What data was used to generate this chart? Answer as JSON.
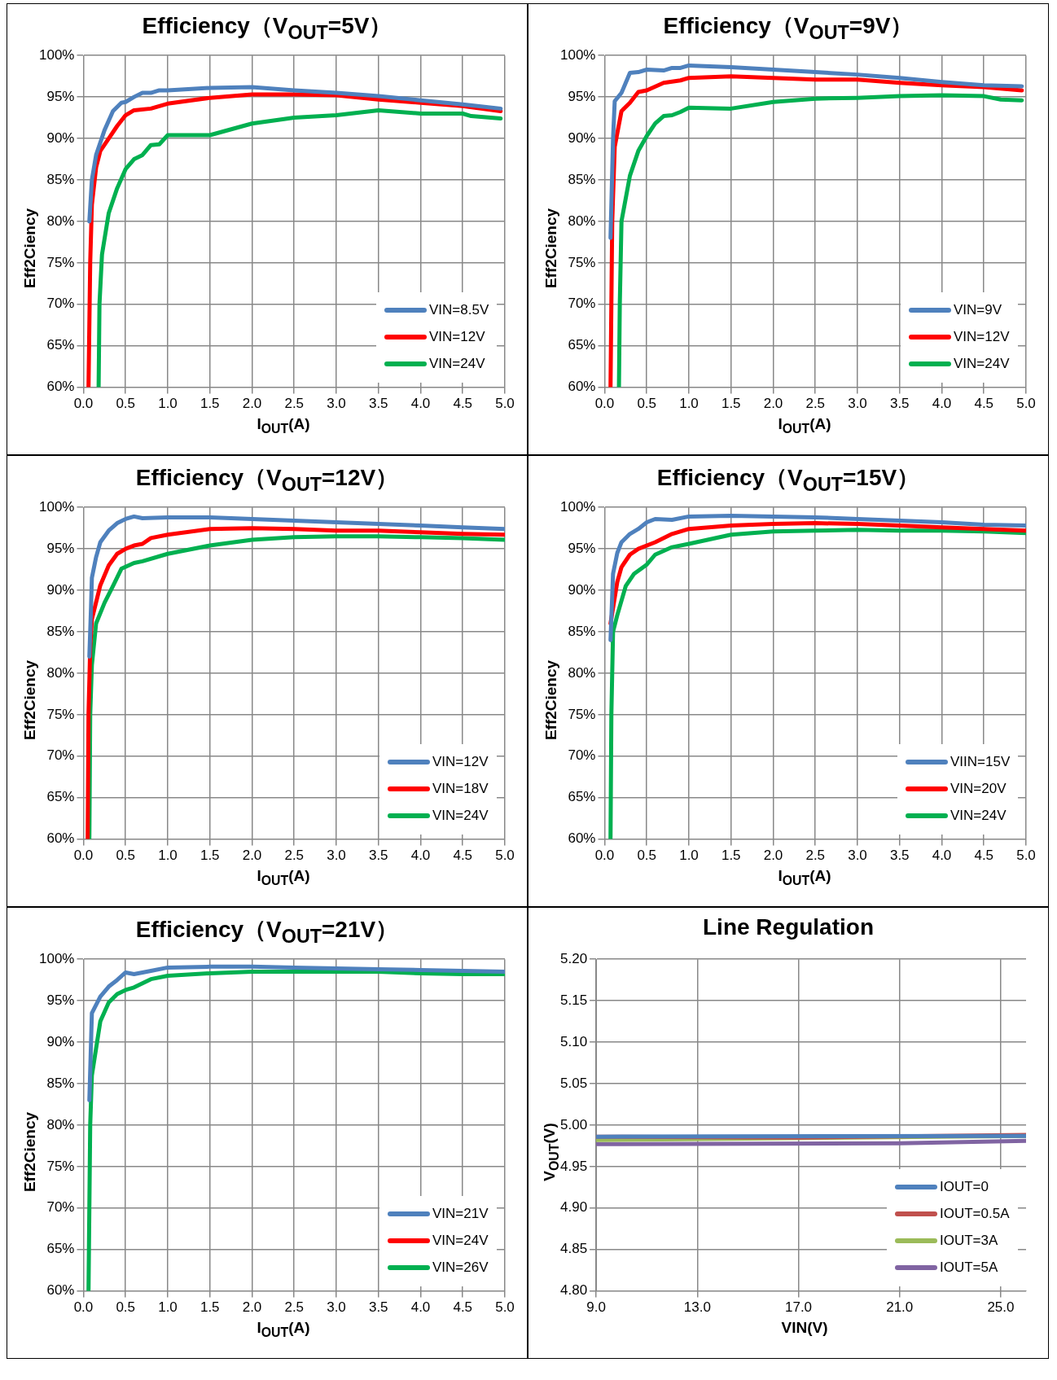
{
  "chart_data": [
    {
      "type": "line",
      "title": "Efficiency（V$_{OUT}$=5V）",
      "xlabel": "I$_{OUT}$(A)",
      "ylabel": "Eff2Ciency",
      "xlim": [
        0,
        5
      ],
      "xticks": [
        {
          "value": 0,
          "label": "0.0"
        },
        0.5,
        {
          "value": 1,
          "label": "1.0"
        },
        1.5,
        {
          "value": 2,
          "label": "2.0"
        },
        2.5,
        {
          "value": 3,
          "label": "3.0"
        },
        3.5,
        {
          "value": 4,
          "label": "4.0"
        },
        4.5,
        {
          "value": 5,
          "label": "5.0"
        }
      ],
      "ylim": [
        60,
        100
      ],
      "yticks": [
        {
          "value": 60,
          "label": "60%"
        },
        {
          "value": 65,
          "label": "65%"
        },
        {
          "value": 70,
          "label": "70%"
        },
        {
          "value": 75,
          "label": "75%"
        },
        {
          "value": 80,
          "label": "80%"
        },
        {
          "value": 85,
          "label": "85%"
        },
        {
          "value": 90,
          "label": "90%"
        },
        {
          "value": 95,
          "label": "95%"
        },
        {
          "value": 100,
          "label": "100%"
        }
      ],
      "grid": true,
      "legend": "bottom right",
      "marker": "none",
      "line_style": "solid",
      "series": [
        {
          "name": "VIN=8.5V",
          "color": "#4f81bd",
          "x": [
            0.07,
            0.1,
            0.15,
            0.25,
            0.35,
            0.45,
            0.5,
            0.6,
            0.7,
            0.8,
            0.9,
            1.0,
            1.5,
            2.0,
            2.5,
            3.0,
            3.5,
            4.0,
            4.5,
            4.95
          ],
          "values": [
            80,
            85,
            88,
            91,
            93.3,
            94.3,
            94.4,
            95,
            95.5,
            95.5,
            95.8,
            95.8,
            96.1,
            96.2,
            95.8,
            95.5,
            95.1,
            94.6,
            94.1,
            93.6
          ]
        },
        {
          "name": "VIN=12V",
          "color": "#ff0000",
          "x": [
            0.06,
            0.08,
            0.1,
            0.15,
            0.2,
            0.3,
            0.4,
            0.5,
            0.6,
            0.8,
            1.0,
            1.5,
            2.0,
            2.5,
            3.0,
            3.5,
            4.0,
            4.5,
            4.95
          ],
          "values": [
            60,
            75,
            82,
            86.5,
            88.5,
            90,
            91.5,
            92.8,
            93.4,
            93.6,
            94.2,
            94.9,
            95.3,
            95.3,
            95.2,
            94.7,
            94.3,
            93.9,
            93.3
          ]
        },
        {
          "name": "VIN=24V",
          "color": "#00b050",
          "x": [
            0.18,
            0.19,
            0.22,
            0.3,
            0.4,
            0.5,
            0.6,
            0.7,
            0.8,
            0.9,
            1.0,
            1.5,
            2.0,
            2.5,
            3.0,
            3.5,
            4.0,
            4.5,
            4.6,
            4.95
          ],
          "values": [
            60,
            70,
            76,
            81,
            84,
            86.3,
            87.5,
            88,
            89.2,
            89.3,
            90.4,
            90.4,
            91.8,
            92.5,
            92.8,
            93.4,
            93,
            93,
            92.7,
            92.4
          ]
        }
      ]
    },
    {
      "type": "line",
      "title": "Efficiency（V$_{OUT}$=9V）",
      "xlabel": "I$_{OUT}$(A)",
      "ylabel": "Eff2Ciency",
      "xlim": [
        0,
        5
      ],
      "xticks": [
        {
          "value": 0,
          "label": "0.0"
        },
        0.5,
        {
          "value": 1,
          "label": "1.0"
        },
        1.5,
        {
          "value": 2,
          "label": "2.0"
        },
        2.5,
        {
          "value": 3,
          "label": "3.0"
        },
        3.5,
        {
          "value": 4,
          "label": "4.0"
        },
        4.5,
        {
          "value": 5,
          "label": "5.0"
        }
      ],
      "ylim": [
        60,
        100
      ],
      "yticks": [
        {
          "value": 60,
          "label": "60%"
        },
        {
          "value": 65,
          "label": "65%"
        },
        {
          "value": 70,
          "label": "70%"
        },
        {
          "value": 75,
          "label": "75%"
        },
        {
          "value": 80,
          "label": "80%"
        },
        {
          "value": 85,
          "label": "85%"
        },
        {
          "value": 90,
          "label": "90%"
        },
        {
          "value": 95,
          "label": "95%"
        },
        {
          "value": 100,
          "label": "100%"
        }
      ],
      "grid": true,
      "legend": "bottom right",
      "marker": "none",
      "line_style": "solid",
      "series": [
        {
          "name": "VIN=9V",
          "color": "#4f81bd",
          "x": [
            0.07,
            0.1,
            0.12,
            0.2,
            0.3,
            0.4,
            0.5,
            0.7,
            0.8,
            0.9,
            1.0,
            1.5,
            2.0,
            2.5,
            3.0,
            3.5,
            4.0,
            4.5,
            4.95
          ],
          "values": [
            78,
            90,
            94.5,
            95.5,
            97.9,
            98,
            98.3,
            98.2,
            98.5,
            98.5,
            98.8,
            98.6,
            98.3,
            98,
            97.7,
            97.3,
            96.8,
            96.4,
            96.3
          ]
        },
        {
          "name": "VIN=12V",
          "color": "#ff0000",
          "x": [
            0.07,
            0.09,
            0.12,
            0.2,
            0.3,
            0.4,
            0.5,
            0.7,
            0.9,
            1.0,
            1.5,
            2.0,
            2.5,
            3.0,
            3.5,
            4.0,
            4.5,
            4.95
          ],
          "values": [
            60,
            80,
            89,
            93.3,
            94.3,
            95.6,
            95.8,
            96.7,
            97,
            97.3,
            97.5,
            97.3,
            97.1,
            97.1,
            96.7,
            96.4,
            96.2,
            95.8
          ]
        },
        {
          "name": "VIN=24V",
          "color": "#00b050",
          "x": [
            0.17,
            0.18,
            0.2,
            0.3,
            0.4,
            0.5,
            0.6,
            0.7,
            0.8,
            0.9,
            1.0,
            1.5,
            2.0,
            2.5,
            3.0,
            3.5,
            4.0,
            4.5,
            4.7,
            4.95
          ],
          "values": [
            60,
            70,
            80,
            85.5,
            88.5,
            90.3,
            91.8,
            92.7,
            92.8,
            93.2,
            93.7,
            93.6,
            94.4,
            94.8,
            94.9,
            95.1,
            95.2,
            95.1,
            94.7,
            94.6
          ]
        }
      ]
    },
    {
      "type": "line",
      "title": "Efficiency（V$_{OUT}$=12V）",
      "xlabel": "I$_{OUT}$(A)",
      "ylabel": "Eff2Ciency",
      "xlim": [
        0,
        5
      ],
      "xticks": [
        {
          "value": 0,
          "label": "0.0"
        },
        0.5,
        {
          "value": 1,
          "label": "1.0"
        },
        1.5,
        {
          "value": 2,
          "label": "2.0"
        },
        2.5,
        {
          "value": 3,
          "label": "3.0"
        },
        3.5,
        {
          "value": 4,
          "label": "4.0"
        },
        4.5,
        {
          "value": 5,
          "label": "5.0"
        }
      ],
      "ylim": [
        60,
        100
      ],
      "yticks": [
        {
          "value": 60,
          "label": "60%"
        },
        {
          "value": 65,
          "label": "65%"
        },
        {
          "value": 70,
          "label": "70%"
        },
        {
          "value": 75,
          "label": "75%"
        },
        {
          "value": 80,
          "label": "80%"
        },
        {
          "value": 85,
          "label": "85%"
        },
        {
          "value": 90,
          "label": "90%"
        },
        {
          "value": 95,
          "label": "95%"
        },
        {
          "value": 100,
          "label": "100%"
        }
      ],
      "grid": true,
      "legend": "bottom right",
      "marker": "none",
      "line_style": "solid",
      "series": [
        {
          "name": "VIN=12V",
          "color": "#4f81bd",
          "x": [
            0.07,
            0.09,
            0.1,
            0.15,
            0.2,
            0.3,
            0.4,
            0.5,
            0.6,
            0.7,
            1.0,
            1.5,
            2.0,
            2.5,
            3.0,
            3.5,
            4.0,
            4.5,
            5.0
          ],
          "values": [
            82,
            88,
            91.5,
            94,
            95.8,
            97.2,
            98.1,
            98.6,
            98.9,
            98.7,
            98.8,
            98.8,
            98.6,
            98.4,
            98.2,
            98,
            97.8,
            97.6,
            97.4
          ]
        },
        {
          "name": "VIN=18V",
          "color": "#ff0000",
          "x": [
            0.05,
            0.06,
            0.08,
            0.1,
            0.2,
            0.3,
            0.4,
            0.5,
            0.6,
            0.7,
            0.8,
            1.0,
            1.5,
            2.0,
            2.5,
            3.0,
            3.5,
            4.0,
            4.5,
            5.0
          ],
          "values": [
            60,
            75,
            83,
            86.5,
            90.6,
            93,
            94.4,
            95,
            95.4,
            95.6,
            96.3,
            96.7,
            97.4,
            97.5,
            97.4,
            97.2,
            97.2,
            97,
            96.8,
            96.7
          ]
        },
        {
          "name": "VIN=24V",
          "color": "#00b050",
          "x": [
            0.07,
            0.08,
            0.1,
            0.15,
            0.25,
            0.35,
            0.45,
            0.6,
            0.7,
            1.0,
            1.5,
            2.0,
            2.5,
            3.0,
            3.5,
            4.0,
            4.5,
            5.0
          ],
          "values": [
            60,
            75,
            81,
            86,
            88.5,
            90.5,
            92.6,
            93.3,
            93.5,
            94.4,
            95.4,
            96.1,
            96.4,
            96.5,
            96.5,
            96.4,
            96.3,
            96.1
          ]
        }
      ]
    },
    {
      "type": "line",
      "title": "Efficiency（V$_{OUT}$=15V）",
      "xlabel": "I$_{OUT}$(A)",
      "ylabel": "Eff2Ciency",
      "xlim": [
        0,
        5
      ],
      "xticks": [
        {
          "value": 0,
          "label": "0.0"
        },
        0.5,
        {
          "value": 1,
          "label": "1.0"
        },
        1.5,
        {
          "value": 2,
          "label": "2.0"
        },
        2.5,
        {
          "value": 3,
          "label": "3.0"
        },
        3.5,
        {
          "value": 4,
          "label": "4.0"
        },
        4.5,
        {
          "value": 5,
          "label": "5.0"
        }
      ],
      "ylim": [
        60,
        100
      ],
      "yticks": [
        {
          "value": 60,
          "label": "60%"
        },
        {
          "value": 65,
          "label": "65%"
        },
        {
          "value": 70,
          "label": "70%"
        },
        {
          "value": 75,
          "label": "75%"
        },
        {
          "value": 80,
          "label": "80%"
        },
        {
          "value": 85,
          "label": "85%"
        },
        {
          "value": 90,
          "label": "90%"
        },
        {
          "value": 95,
          "label": "95%"
        },
        {
          "value": 100,
          "label": "100%"
        }
      ],
      "grid": true,
      "legend": "bottom right",
      "marker": "none",
      "line_style": "solid",
      "series": [
        {
          "name": "VIIN=15V",
          "color": "#4f81bd",
          "x": [
            0.07,
            0.1,
            0.15,
            0.2,
            0.3,
            0.4,
            0.5,
            0.6,
            0.8,
            1.0,
            1.5,
            2.0,
            2.5,
            3.0,
            3.5,
            4.0,
            4.5,
            5.0
          ],
          "values": [
            84,
            92,
            94.5,
            95.8,
            96.8,
            97.4,
            98.2,
            98.6,
            98.5,
            98.9,
            99,
            98.9,
            98.8,
            98.6,
            98.4,
            98.2,
            97.9,
            97.8
          ]
        },
        {
          "name": "VIN=20V",
          "color": "#ff0000",
          "x": [
            0.07,
            0.15,
            0.2,
            0.3,
            0.4,
            0.6,
            0.8,
            1.0,
            1.5,
            2.0,
            2.5,
            3.0,
            3.5,
            4.0,
            4.5,
            5.0
          ],
          "values": [
            86,
            91,
            92.8,
            94.3,
            95,
            95.8,
            96.8,
            97.4,
            97.8,
            98,
            98.1,
            98,
            97.8,
            97.6,
            97.4,
            97.2
          ]
        },
        {
          "name": "VIN=24V",
          "color": "#00b050",
          "x": [
            0.07,
            0.08,
            0.1,
            0.15,
            0.25,
            0.35,
            0.5,
            0.6,
            0.8,
            1.0,
            1.5,
            2.0,
            2.5,
            3.0,
            3.5,
            4.0,
            4.5,
            5.0
          ],
          "values": [
            60,
            75,
            85,
            87,
            90.5,
            92,
            93.1,
            94.3,
            95.2,
            95.6,
            96.7,
            97.1,
            97.2,
            97.3,
            97.2,
            97.2,
            97.1,
            96.9
          ]
        }
      ]
    },
    {
      "type": "line",
      "title": "Efficiency（V$_{OUT}$=21V）",
      "xlabel": "I$_{OUT}$(A)",
      "ylabel": "Eff2Ciency",
      "xlim": [
        0,
        5
      ],
      "xticks": [
        {
          "value": 0,
          "label": "0.0"
        },
        0.5,
        {
          "value": 1,
          "label": "1.0"
        },
        1.5,
        {
          "value": 2,
          "label": "2.0"
        },
        2.5,
        {
          "value": 3,
          "label": "3.0"
        },
        3.5,
        {
          "value": 4,
          "label": "4.0"
        },
        4.5,
        {
          "value": 5,
          "label": "5.0"
        }
      ],
      "ylim": [
        60,
        100
      ],
      "yticks": [
        {
          "value": 60,
          "label": "60%"
        },
        {
          "value": 65,
          "label": "65%"
        },
        {
          "value": 70,
          "label": "70%"
        },
        {
          "value": 75,
          "label": "75%"
        },
        {
          "value": 80,
          "label": "80%"
        },
        {
          "value": 85,
          "label": "85%"
        },
        {
          "value": 90,
          "label": "90%"
        },
        {
          "value": 95,
          "label": "95%"
        },
        {
          "value": 100,
          "label": "100%"
        }
      ],
      "grid": true,
      "legend": "bottom right",
      "marker": "none",
      "line_style": "solid",
      "series": [
        {
          "name": "VIN=21V",
          "color": "#4f81bd",
          "x": [
            0.07,
            0.1,
            0.2,
            0.3,
            0.4,
            0.5,
            0.6,
            0.8,
            1.0,
            1.5,
            2.0,
            2.5,
            3.0,
            3.5,
            4.0,
            4.5,
            5.0
          ],
          "values": [
            83,
            93.5,
            95.5,
            96.7,
            97.5,
            98.4,
            98.2,
            98.6,
            99,
            99.1,
            99.1,
            99,
            98.9,
            98.8,
            98.7,
            98.6,
            98.5
          ]
        },
        {
          "name": "VIN=24V",
          "color": "#ff0000"
        },
        {
          "name": "VIN=26V",
          "color": "#00b050",
          "x": [
            0.06,
            0.08,
            0.1,
            0.2,
            0.3,
            0.4,
            0.5,
            0.6,
            0.8,
            1.0,
            1.5,
            2.0,
            2.5,
            3.0,
            3.5,
            4.0,
            4.5,
            5.0
          ],
          "values": [
            60,
            80,
            86,
            92.5,
            94.8,
            95.8,
            96.3,
            96.6,
            97.6,
            98,
            98.3,
            98.5,
            98.5,
            98.5,
            98.5,
            98.3,
            98.2,
            98.2
          ]
        }
      ]
    },
    {
      "type": "line",
      "title": "Line Regulation",
      "xlabel": "VIN(V)",
      "ylabel": "V$_{OUT}$(V)",
      "xlim": [
        9,
        26
      ],
      "xticks": [
        {
          "value": 9,
          "label": "9.0"
        },
        {
          "value": 13,
          "label": "13.0"
        },
        {
          "value": 17,
          "label": "17.0"
        },
        {
          "value": 21,
          "label": "21.0"
        },
        {
          "value": 25,
          "label": "25.0"
        }
      ],
      "ylim": [
        4.8,
        5.2
      ],
      "yticks": [
        {
          "value": 4.8,
          "label": "4.80"
        },
        {
          "value": 4.85,
          "label": "4.85"
        },
        {
          "value": 4.9,
          "label": "4.90"
        },
        {
          "value": 4.95,
          "label": "4.95"
        },
        {
          "value": 5.0,
          "label": "5.00"
        },
        {
          "value": 5.05,
          "label": "5.05"
        },
        {
          "value": 5.1,
          "label": "5.10"
        },
        {
          "value": 5.15,
          "label": "5.15"
        },
        {
          "value": 5.2,
          "label": "5.20"
        }
      ],
      "grid": true,
      "legend": "bottom right",
      "marker": "none",
      "line_style": "solid",
      "series": [
        {
          "name": "IOUT=0",
          "color": "#4f81bd",
          "x": [
            9,
            26
          ],
          "values": [
            4.986,
            4.987
          ]
        },
        {
          "name": "IOUT=0.5A",
          "color": "#c0504d",
          "x": [
            9,
            17,
            26
          ],
          "values": [
            4.986,
            4.985,
            4.988
          ]
        },
        {
          "name": "IOUT=3A",
          "color": "#9bbb59",
          "x": [
            9,
            26
          ],
          "values": [
            4.982,
            4.987
          ]
        },
        {
          "name": "IOUT=5A",
          "color": "#8064a2",
          "x": [
            9,
            21,
            26
          ],
          "values": [
            4.977,
            4.978,
            4.981
          ]
        }
      ]
    }
  ]
}
